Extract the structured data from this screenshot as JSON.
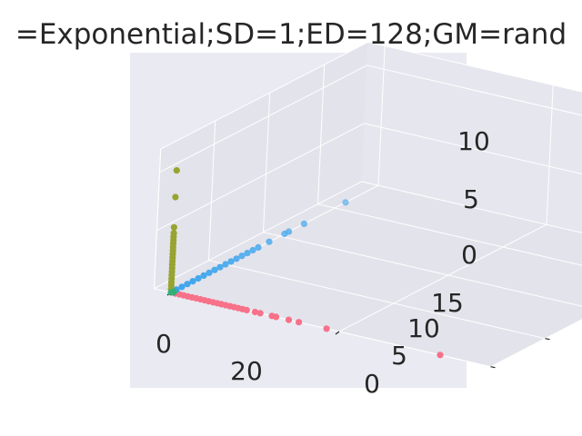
{
  "chart_data": {
    "type": "scatter",
    "title": "=Exponential;SD=1;ED=128;GM=rand",
    "xlabel": "",
    "ylabel": "",
    "zlabel": "",
    "x_ticks": [
      "0",
      "20"
    ],
    "y_ticks": [
      "0",
      "5",
      "10",
      "15"
    ],
    "z_ticks": [
      "0",
      "5",
      "10"
    ],
    "xlim": [
      -2,
      38
    ],
    "ylim": [
      0,
      19
    ],
    "zlim": [
      0,
      12
    ],
    "grid": true,
    "legend": "none",
    "series": [
      {
        "color": "#f77189",
        "points": [
          [
            0.5,
            0,
            0
          ],
          [
            1,
            0,
            0
          ],
          [
            1.5,
            0,
            0
          ],
          [
            2,
            0,
            0
          ],
          [
            2.5,
            0,
            0
          ],
          [
            3,
            0,
            0
          ],
          [
            3.5,
            0,
            0
          ],
          [
            4,
            0,
            0
          ],
          [
            4.5,
            0,
            0
          ],
          [
            5,
            0,
            0
          ],
          [
            5.5,
            0,
            0
          ],
          [
            6,
            0,
            0
          ],
          [
            6.5,
            0,
            0
          ],
          [
            7,
            0,
            0
          ],
          [
            7.5,
            0,
            0
          ],
          [
            8,
            0,
            0
          ],
          [
            8.5,
            0,
            0
          ],
          [
            9,
            0,
            0
          ],
          [
            10,
            0,
            0
          ],
          [
            10.6,
            0,
            0
          ],
          [
            12,
            0,
            0
          ],
          [
            12.5,
            0,
            0
          ],
          [
            14,
            0,
            0
          ],
          [
            15.2,
            0,
            0
          ],
          [
            18.5,
            0,
            0
          ],
          [
            32,
            0,
            0
          ]
        ]
      },
      {
        "color": "#3ba3ec",
        "points": [
          [
            0,
            0.5,
            0
          ],
          [
            0,
            1,
            0
          ],
          [
            0,
            1.5,
            0
          ],
          [
            0,
            2,
            0
          ],
          [
            0,
            2.5,
            0
          ],
          [
            0,
            3,
            0
          ],
          [
            0,
            3.5,
            0
          ],
          [
            0,
            4,
            0
          ],
          [
            0,
            4.5,
            0
          ],
          [
            0,
            5,
            0
          ],
          [
            0,
            5.5,
            0
          ],
          [
            0,
            6,
            0
          ],
          [
            0,
            6.5,
            0
          ],
          [
            0,
            7,
            0
          ],
          [
            0,
            7.5,
            0
          ],
          [
            0,
            8,
            0
          ],
          [
            0,
            9,
            0
          ],
          [
            0,
            10.4,
            0
          ],
          [
            0,
            10.8,
            0
          ],
          [
            0,
            12.2,
            0
          ],
          [
            0,
            16,
            0
          ]
        ]
      },
      {
        "color": "#97a431",
        "points": [
          [
            0,
            0,
            0.3
          ],
          [
            0,
            0,
            0.6
          ],
          [
            0,
            0,
            0.9
          ],
          [
            0,
            0,
            1.2
          ],
          [
            0,
            0,
            1.5
          ],
          [
            0,
            0,
            1.8
          ],
          [
            0,
            0,
            2.1
          ],
          [
            0,
            0,
            2.4
          ],
          [
            0,
            0,
            2.7
          ],
          [
            0,
            0,
            3
          ],
          [
            0,
            0,
            3.3
          ],
          [
            0,
            0,
            3.6
          ],
          [
            0,
            0,
            3.9
          ],
          [
            0,
            0,
            4.2
          ],
          [
            0,
            0,
            4.5
          ],
          [
            0,
            0,
            4.8
          ],
          [
            0,
            0,
            5.1
          ],
          [
            0,
            0,
            5.6
          ],
          [
            0,
            0,
            8.2
          ],
          [
            0,
            0,
            10.5
          ]
        ]
      },
      {
        "color": "#33b07a",
        "points": [
          [
            0,
            0,
            0
          ],
          [
            0.2,
            0.1,
            0
          ],
          [
            0.1,
            0.2,
            0
          ]
        ]
      }
    ]
  }
}
